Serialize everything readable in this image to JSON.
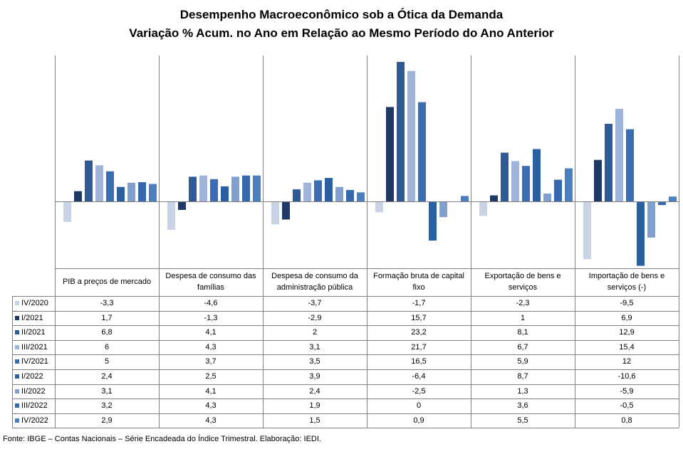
{
  "title": "Desempenho Macroeconômico sob a Ótica da Demanda",
  "subtitle": "Variação % Acum. no Ano em Relação ao Mesmo Período do Ano Anterior",
  "source": "Fonte: IBGE – Contas Nacionais – Série Encadeada do Índice Trimestral. Elaboração: IEDI.",
  "chart_data": {
    "type": "bar",
    "categories": [
      "PIB a preços de mercado",
      "Despesa de consumo das famílias",
      "Despesa de consumo da administração pública",
      "Formação bruta de capital fixo",
      "Exportação de bens e serviços",
      "Importação de bens e serviços (-)"
    ],
    "category_lines": [
      [
        "PIB a preços de mercado"
      ],
      [
        "Despesa de consumo das",
        "famílias"
      ],
      [
        "Despesa de consumo da",
        "administração pública"
      ],
      [
        "Formação bruta de capital",
        "fixo"
      ],
      [
        "Exportação de bens e",
        "serviços"
      ],
      [
        "Importação de bens e",
        "serviços (-)"
      ]
    ],
    "series": [
      {
        "name": "IV/2020",
        "color": "#c9d3e6",
        "values": [
          -3.3,
          -4.6,
          -3.7,
          -1.7,
          -2.3,
          -9.5
        ]
      },
      {
        "name": "I/2021",
        "color": "#1f3864",
        "values": [
          1.7,
          -1.3,
          -2.9,
          15.7,
          1,
          6.9
        ]
      },
      {
        "name": "II/2021",
        "color": "#2e5a96",
        "values": [
          6.8,
          4.1,
          2,
          23.2,
          8.1,
          12.9
        ]
      },
      {
        "name": "III/2021",
        "color": "#9fb4d8",
        "values": [
          6,
          4.3,
          3.1,
          21.7,
          6.7,
          15.4
        ]
      },
      {
        "name": "IV/2021",
        "color": "#3b6db4",
        "values": [
          5,
          3.7,
          3.5,
          16.5,
          5.9,
          12
        ]
      },
      {
        "name": "I/2022",
        "color": "#2a5fa0",
        "values": [
          2.4,
          2.5,
          3.9,
          -6.4,
          8.7,
          -10.6
        ]
      },
      {
        "name": "II/2022",
        "color": "#7f9fcf",
        "values": [
          3.1,
          4.1,
          2.4,
          -2.5,
          1.3,
          -5.9
        ]
      },
      {
        "name": "III/2022",
        "color": "#3668ad",
        "values": [
          3.2,
          4.3,
          1.9,
          0,
          3.6,
          -0.5
        ]
      },
      {
        "name": "IV/2022",
        "color": "#4a7fc0",
        "values": [
          2.9,
          4.3,
          1.5,
          0.9,
          5.5,
          0.8
        ]
      }
    ],
    "legend_position": "left of table",
    "grid": false
  }
}
